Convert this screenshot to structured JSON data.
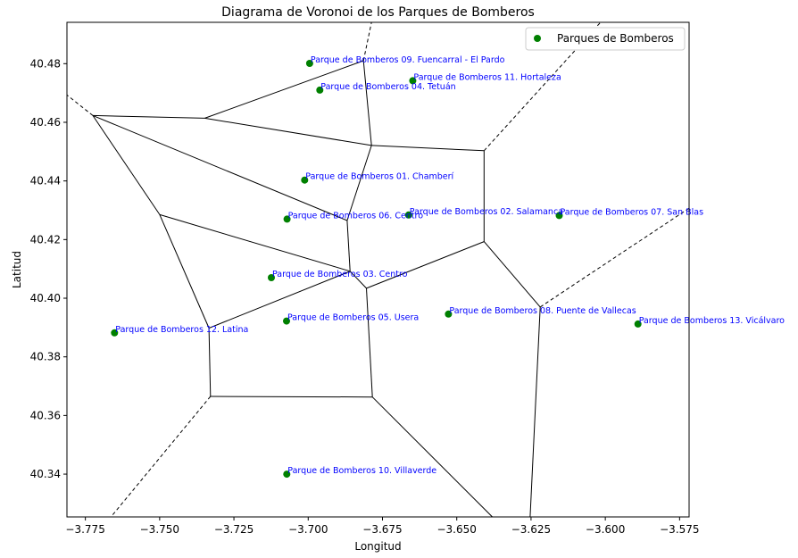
{
  "chart_data": {
    "type": "scatter",
    "title": "Diagrama de Voronoi de los Parques de Bomberos",
    "xlabel": "Longitud",
    "ylabel": "Latitud",
    "xlim": [
      -3.7812,
      -3.5718
    ],
    "ylim": [
      40.3254,
      40.4941
    ],
    "xticks": [
      -3.775,
      -3.75,
      -3.725,
      -3.7,
      -3.675,
      -3.65,
      -3.625,
      -3.6,
      -3.575
    ],
    "xtick_labels": [
      "−3.775",
      "−3.750",
      "−3.725",
      "−3.700",
      "−3.675",
      "−3.650",
      "−3.625",
      "−3.600",
      "−3.575"
    ],
    "yticks": [
      40.34,
      40.36,
      40.38,
      40.4,
      40.42,
      40.44,
      40.46,
      40.48
    ],
    "ytick_labels": [
      "40.34",
      "40.36",
      "40.38",
      "40.40",
      "40.42",
      "40.44",
      "40.46",
      "40.48"
    ],
    "grid": false,
    "legend": {
      "position": "top-right",
      "entries": [
        "Parques de Bomberos"
      ]
    },
    "colors": {
      "points": "#008000",
      "labels": "#0000ff",
      "edges": "#000000"
    },
    "series": [
      {
        "name": "Parques de Bomberos",
        "points": [
          {
            "label": "Parque de Bomberos 09. Fuencarral - El Pardo",
            "x": -3.6995,
            "y": 40.4801
          },
          {
            "label": "Parque de Bomberos 11. Hortaleza",
            "x": -3.6648,
            "y": 40.4742
          },
          {
            "label": "Parque de Bomberos 04. Tetuán",
            "x": -3.6961,
            "y": 40.471
          },
          {
            "label": "Parque de Bomberos 01. Chamberí",
            "x": -3.7012,
            "y": 40.4403
          },
          {
            "label": "Parque de Bomberos 02. Salamanca",
            "x": -3.6662,
            "y": 40.4284
          },
          {
            "label": "Parque de Bomberos 07. San Blas",
            "x": -3.6155,
            "y": 40.4282
          },
          {
            "label": "Parque de Bomberos 06. Centro",
            "x": -3.7071,
            "y": 40.427
          },
          {
            "label": "Parque de Bomberos 03. Centro",
            "x": -3.7124,
            "y": 40.407
          },
          {
            "label": "Parque de Bomberos 05. Usera",
            "x": -3.7073,
            "y": 40.3922
          },
          {
            "label": "Parque de Bomberos 08. Puente de Vallecas",
            "x": -3.6528,
            "y": 40.3946
          },
          {
            "label": "Parque de Bomberos 13. Vicálvaro",
            "x": -3.589,
            "y": 40.3912
          },
          {
            "label": "Parque de Bomberos 12. Latina",
            "x": -3.7652,
            "y": 40.3882
          },
          {
            "label": "Parque de Bomberos 10. Villaverde",
            "x": -3.7072,
            "y": 40.34
          }
        ]
      }
    ],
    "voronoi_edges": [
      {
        "from": [
          -3.7725,
          40.4623
        ],
        "to": [
          -3.7348,
          40.4614
        ],
        "style": "solid"
      },
      {
        "from": [
          -3.7348,
          40.4614
        ],
        "to": [
          -3.6814,
          40.481
        ],
        "style": "solid"
      },
      {
        "from": [
          -3.6814,
          40.481
        ],
        "to": [
          -3.6787,
          40.4521
        ],
        "style": "solid"
      },
      {
        "from": [
          -3.7348,
          40.4614
        ],
        "to": [
          -3.6787,
          40.4521
        ],
        "style": "solid"
      },
      {
        "from": [
          -3.6787,
          40.4521
        ],
        "to": [
          -3.6408,
          40.4503
        ],
        "style": "solid"
      },
      {
        "from": [
          -3.6408,
          40.4503
        ],
        "to": [
          -3.6408,
          40.4193
        ],
        "style": "solid"
      },
      {
        "from": [
          -3.6787,
          40.4521
        ],
        "to": [
          -3.6869,
          40.4265
        ],
        "style": "solid"
      },
      {
        "from": [
          -3.7725,
          40.4623
        ],
        "to": [
          -3.6869,
          40.4265
        ],
        "style": "solid"
      },
      {
        "from": [
          -3.6869,
          40.4265
        ],
        "to": [
          -3.6859,
          40.4092
        ],
        "style": "solid"
      },
      {
        "from": [
          -3.7725,
          40.4623
        ],
        "to": [
          -3.75,
          40.4285
        ],
        "style": "solid"
      },
      {
        "from": [
          -3.75,
          40.4285
        ],
        "to": [
          -3.6859,
          40.4092
        ],
        "style": "solid"
      },
      {
        "from": [
          -3.75,
          40.4285
        ],
        "to": [
          -3.7334,
          40.3898
        ],
        "style": "solid"
      },
      {
        "from": [
          -3.7334,
          40.3898
        ],
        "to": [
          -3.6859,
          40.4092
        ],
        "style": "solid"
      },
      {
        "from": [
          -3.6859,
          40.4092
        ],
        "to": [
          -3.6804,
          40.4034
        ],
        "style": "solid"
      },
      {
        "from": [
          -3.6804,
          40.4034
        ],
        "to": [
          -3.6408,
          40.4193
        ],
        "style": "solid"
      },
      {
        "from": [
          -3.6408,
          40.4193
        ],
        "to": [
          -3.6219,
          40.397
        ],
        "style": "solid"
      },
      {
        "from": [
          -3.6804,
          40.4034
        ],
        "to": [
          -3.6784,
          40.3663
        ],
        "style": "solid"
      },
      {
        "from": [
          -3.7334,
          40.3898
        ],
        "to": [
          -3.7329,
          40.3665
        ],
        "style": "solid"
      },
      {
        "from": [
          -3.7329,
          40.3665
        ],
        "to": [
          -3.6784,
          40.3663
        ],
        "style": "solid"
      },
      {
        "from": [
          -3.6784,
          40.3663
        ],
        "to": [
          -3.638,
          40.3254
        ],
        "style": "solid"
      },
      {
        "from": [
          -3.6219,
          40.397
        ],
        "to": [
          -3.6253,
          40.3254
        ],
        "style": "solid"
      },
      {
        "from": [
          -3.6814,
          40.481
        ],
        "to": [
          -3.6787,
          40.4941
        ],
        "style": "dashed"
      },
      {
        "from": [
          -3.6408,
          40.4503
        ],
        "to": [
          -3.6016,
          40.4941
        ],
        "style": "dashed"
      },
      {
        "from": [
          -3.7725,
          40.4623
        ],
        "to": [
          -3.7812,
          40.4693
        ],
        "style": "dashed"
      },
      {
        "from": [
          -3.6219,
          40.397
        ],
        "to": [
          -3.5718,
          40.4307
        ],
        "style": "dashed"
      },
      {
        "from": [
          -3.7329,
          40.3665
        ],
        "to": [
          -3.7664,
          40.3254
        ],
        "style": "dashed"
      }
    ]
  }
}
